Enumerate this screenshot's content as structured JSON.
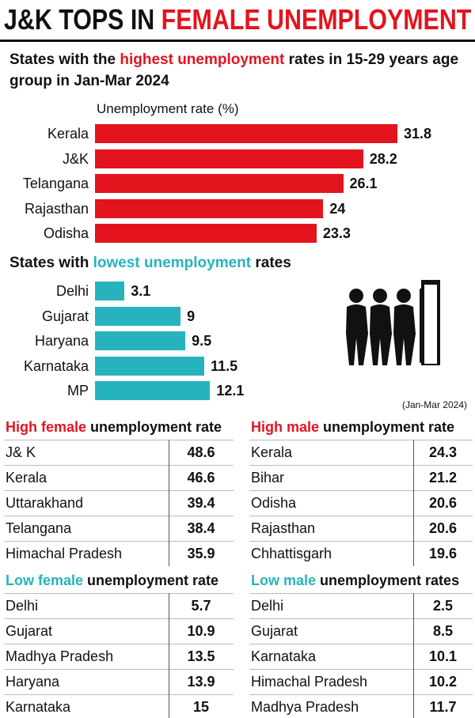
{
  "title": [
    "J&K TOPS IN ",
    "FEMALE UNEMPLOYMENT"
  ],
  "title_color": "#e3141e",
  "chart_data": [
    {
      "type": "bar",
      "horizontal": true,
      "title": [
        "States with the ",
        "highest unemployment",
        " rates in 15-29 years age group in Jan-Mar 2024"
      ],
      "x_label": "Unemployment rate (%)",
      "categories": [
        "Kerala",
        "J&K",
        "Telangana",
        "Rajasthan",
        "Odisha"
      ],
      "values": [
        31.8,
        28.2,
        26.1,
        24,
        23.3
      ],
      "color": "#e3141e"
    },
    {
      "type": "bar",
      "horizontal": true,
      "title": [
        "States with ",
        "lowest unemployment",
        " rates"
      ],
      "categories": [
        "Delhi",
        "Gujarat",
        "Haryana",
        "Karnataka",
        "MP"
      ],
      "values": [
        3.1,
        9,
        9.5,
        11.5,
        12.1
      ],
      "color": "#27b3bd"
    }
  ],
  "note": "(Jan-Mar 2024)",
  "tables": [
    {
      "title": [
        "High female",
        " unemployment rate"
      ],
      "color": "#e3141e",
      "rows": [
        [
          "J& K",
          48.6
        ],
        [
          "Kerala",
          46.6
        ],
        [
          "Uttarakhand",
          39.4
        ],
        [
          "Telangana",
          38.4
        ],
        [
          "Himachal Pradesh",
          35.9
        ]
      ]
    },
    {
      "title": [
        "High male",
        " unemployment rate"
      ],
      "color": "#e3141e",
      "rows": [
        [
          "Kerala",
          24.3
        ],
        [
          "Bihar",
          21.2
        ],
        [
          "Odisha",
          20.6
        ],
        [
          "Rajasthan",
          20.6
        ],
        [
          "Chhattisgarh",
          19.6
        ]
      ]
    },
    {
      "title": [
        "Low female",
        " unemployment rate"
      ],
      "color": "#27b3bd",
      "rows": [
        [
          "Delhi",
          5.7
        ],
        [
          "Gujarat",
          10.9
        ],
        [
          "Madhya Pradesh",
          13.5
        ],
        [
          "Haryana",
          13.9
        ],
        [
          "Karnataka",
          15
        ]
      ]
    },
    {
      "title": [
        "Low male",
        " unemployment rates"
      ],
      "color": "#27b3bd",
      "rows": [
        [
          "Delhi",
          2.5
        ],
        [
          "Gujarat",
          8.5
        ],
        [
          "Karnataka",
          10.1
        ],
        [
          "Himachal Pradesh",
          10.2
        ],
        [
          "Madhya Pradesh",
          11.7
        ]
      ]
    }
  ]
}
